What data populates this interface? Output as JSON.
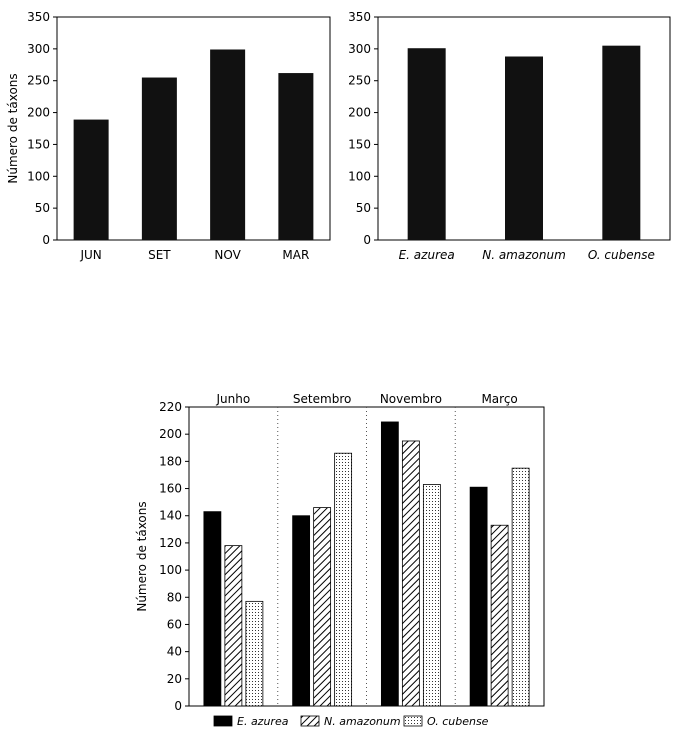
{
  "chart_data": [
    {
      "type": "bar",
      "ylabel": "Número de táxons",
      "ylim": [
        0,
        350
      ],
      "yticks": [
        0,
        50,
        100,
        150,
        200,
        250,
        300,
        350
      ],
      "categories": [
        "JUN",
        "SET",
        "NOV",
        "MAR"
      ],
      "values": [
        189,
        255,
        299,
        262
      ],
      "bar_color": "#111111"
    },
    {
      "type": "bar",
      "ylim": [
        0,
        350
      ],
      "yticks": [
        0,
        50,
        100,
        150,
        200,
        250,
        300,
        350
      ],
      "categories": [
        "E. azurea",
        "N. amazonum",
        "O. cubense"
      ],
      "category_style": "italic",
      "values": [
        301,
        288,
        305
      ],
      "bar_color": "#111111"
    },
    {
      "type": "bar",
      "ylabel": "Número de táxons",
      "ylim": [
        0,
        220
      ],
      "yticks": [
        0,
        20,
        40,
        60,
        80,
        100,
        120,
        140,
        160,
        180,
        200,
        220
      ],
      "categories": [
        "Junho",
        "Setembro",
        "Novembro",
        "Março"
      ],
      "series": [
        {
          "name": "E. azurea",
          "values": [
            143,
            140,
            209,
            161
          ],
          "pattern": "solid"
        },
        {
          "name": "N. amazonum",
          "values": [
            118,
            146,
            195,
            133
          ],
          "pattern": "hatch"
        },
        {
          "name": "O. cubense",
          "values": [
            77,
            186,
            163,
            175
          ],
          "pattern": "dots"
        }
      ],
      "legend": "bottom"
    }
  ]
}
